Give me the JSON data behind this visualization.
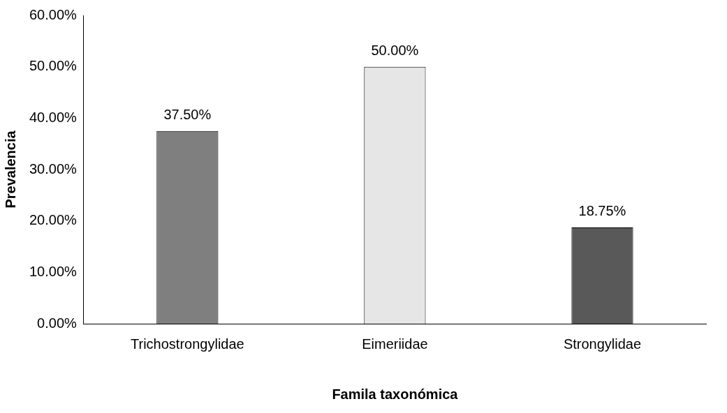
{
  "chart_data": {
    "type": "bar",
    "xlabel": "Famila taxonómica",
    "ylabel": "Prevalencia",
    "categories": [
      "Trichostrongylidae",
      "Eimeriidae",
      "Strongylidae"
    ],
    "values": [
      37.5,
      50,
      18.75
    ],
    "colors": [
      "#7f7f7f",
      "#e6e6e6",
      "#595959"
    ],
    "value_labels": [
      "37.50%",
      "50.00%",
      "18.75%"
    ],
    "ylim": [
      0,
      60
    ],
    "yticks": [
      {
        "value": 0,
        "label": "0.00%"
      },
      {
        "value": 10,
        "label": "10.00%"
      },
      {
        "value": 20,
        "label": "20.00%"
      },
      {
        "value": 30,
        "label": "30.00%"
      },
      {
        "value": 40,
        "label": "40.00%"
      },
      {
        "value": 50,
        "label": "50.00%"
      },
      {
        "value": 60,
        "label": "60.00%"
      }
    ],
    "grid": false,
    "legend": false
  }
}
